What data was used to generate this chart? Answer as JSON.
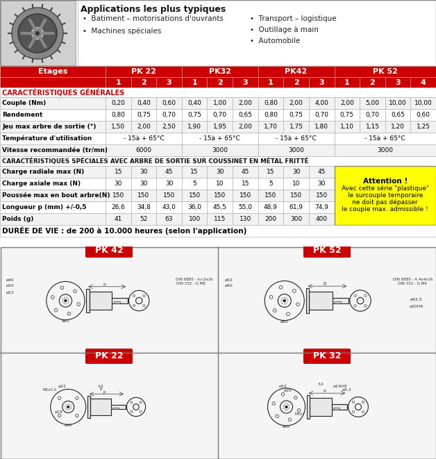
{
  "app_title": "Applications les plus typiques",
  "app_bullets_left": [
    "Batiment – motorisations d'ouvrants",
    "Machines spéciales"
  ],
  "app_bullets_right": [
    "Transport – logistique",
    "Outillage à main",
    "Automobile"
  ],
  "header_color": "#cc0000",
  "header_text_color": "#ffffff",
  "row_alt_color": "#f2f2f2",
  "row_color": "#ffffff",
  "attention_bg": "#ffff00",
  "rows_general_header": "CARACTÉRISTIQUES GÉNÉRALES",
  "rows_special_header": "CARACTÉRISTIQUES SPÉCIALES AVEC ARBRE DE SORTIE SUR COUSSINET EN MÉTAL FRITTÉ",
  "rows_general": [
    [
      "Couple (Nm)",
      "0,20",
      "0,40",
      "0,60",
      "0,40",
      "1,00",
      "2,00",
      "0,80",
      "2,00",
      "4,00",
      "2,00",
      "5,00",
      "10,00",
      "10,00"
    ],
    [
      "Rendement",
      "0,80",
      "0,75",
      "0,70",
      "0,75",
      "0,70",
      "0,65",
      "0,80",
      "0,75",
      "0,70",
      "0,75",
      "0,70",
      "0,65",
      "0,60"
    ],
    [
      "Jeu max arbre de sortie (°)",
      "1,50",
      "2,00",
      "2,50",
      "1,90",
      "1,95",
      "2,00",
      "1,70",
      "1,75",
      "1,80",
      "1,10",
      "1,15",
      "1,20",
      "1,25"
    ],
    [
      "Température d'utilisation",
      "- 15à + 65°C",
      "",
      "",
      "- 15à + 65°C",
      "",
      "",
      "- 15à + 65°C",
      "",
      "",
      "- 15à + 65°C",
      "",
      "",
      ""
    ],
    [
      "Vitesse recommandée (tr/mn)",
      "6000",
      "",
      "",
      "3000",
      "",
      "",
      "3000",
      "",
      "",
      "3000",
      "",
      "",
      ""
    ]
  ],
  "rows_special": [
    [
      "Charge radiale max (N)",
      "15",
      "30",
      "45",
      "15",
      "30",
      "45",
      "15",
      "30",
      "45"
    ],
    [
      "Charge axiale max (N)",
      "30",
      "30",
      "30",
      "5",
      "10",
      "15",
      "5",
      "10",
      "30"
    ],
    [
      "Poussée max en bout arbre(N)",
      "150",
      "150",
      "150",
      "150",
      "150",
      "150",
      "150",
      "150",
      "150"
    ],
    [
      "Longueur p (mm) +/-0,5",
      "26,6",
      "34,8",
      "43,0",
      "36,0",
      "45,5",
      "55,0",
      "48,9",
      "61,9",
      "74,9"
    ],
    [
      "Poids (g)",
      "41",
      "52",
      "63",
      "100",
      "115",
      "130",
      "200",
      "300",
      "400"
    ]
  ],
  "attention_text": [
    "Attention !",
    "Avec cette série \"plastique\"",
    "le surcouple temporaire",
    "ne doit pas dépasser",
    "le couple max. admissible !"
  ],
  "duree_text": "DURÉE DE VIE : de 200 à 10.000 heures (selon l'application)",
  "background_color": "#ffffff"
}
